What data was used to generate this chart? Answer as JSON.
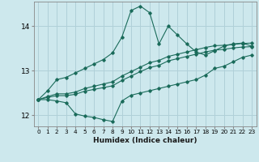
{
  "xlabel": "Humidex (Indice chaleur)",
  "ylabel": "",
  "bg_color": "#cde8ed",
  "grid_color": "#b0d0d8",
  "line_color": "#1a6b5a",
  "xlim": [
    -0.5,
    23.5
  ],
  "ylim": [
    11.75,
    14.55
  ],
  "xticks": [
    0,
    1,
    2,
    3,
    4,
    5,
    6,
    7,
    8,
    9,
    10,
    11,
    12,
    13,
    14,
    15,
    16,
    17,
    18,
    19,
    20,
    21,
    22,
    23
  ],
  "yticks": [
    12,
    13,
    14
  ],
  "series": {
    "upper": [
      [
        0,
        12.35
      ],
      [
        1,
        12.55
      ],
      [
        2,
        12.8
      ],
      [
        3,
        12.85
      ],
      [
        4,
        12.95
      ],
      [
        5,
        13.05
      ],
      [
        6,
        13.15
      ],
      [
        7,
        13.25
      ],
      [
        8,
        13.4
      ],
      [
        9,
        13.75
      ],
      [
        10,
        14.35
      ],
      [
        11,
        14.45
      ],
      [
        12,
        14.3
      ],
      [
        13,
        13.6
      ],
      [
        14,
        14.0
      ],
      [
        15,
        13.8
      ],
      [
        16,
        13.6
      ],
      [
        17,
        13.42
      ],
      [
        18,
        13.35
      ],
      [
        19,
        13.45
      ],
      [
        20,
        13.55
      ],
      [
        21,
        13.6
      ],
      [
        22,
        13.62
      ],
      [
        23,
        13.55
      ]
    ],
    "mean1": [
      [
        0,
        12.35
      ],
      [
        1,
        12.42
      ],
      [
        2,
        12.48
      ],
      [
        3,
        12.48
      ],
      [
        4,
        12.52
      ],
      [
        5,
        12.6
      ],
      [
        6,
        12.65
      ],
      [
        7,
        12.7
      ],
      [
        8,
        12.75
      ],
      [
        9,
        12.88
      ],
      [
        10,
        12.98
      ],
      [
        11,
        13.08
      ],
      [
        12,
        13.18
      ],
      [
        13,
        13.23
      ],
      [
        14,
        13.32
      ],
      [
        15,
        13.37
      ],
      [
        16,
        13.42
      ],
      [
        17,
        13.47
      ],
      [
        18,
        13.52
      ],
      [
        19,
        13.56
      ],
      [
        20,
        13.57
      ],
      [
        21,
        13.59
      ],
      [
        22,
        13.61
      ],
      [
        23,
        13.62
      ]
    ],
    "mean2": [
      [
        0,
        12.35
      ],
      [
        1,
        12.4
      ],
      [
        2,
        12.44
      ],
      [
        3,
        12.44
      ],
      [
        4,
        12.47
      ],
      [
        5,
        12.54
      ],
      [
        6,
        12.58
      ],
      [
        7,
        12.62
      ],
      [
        8,
        12.66
      ],
      [
        9,
        12.78
      ],
      [
        10,
        12.88
      ],
      [
        11,
        12.98
      ],
      [
        12,
        13.07
      ],
      [
        13,
        13.12
      ],
      [
        14,
        13.22
      ],
      [
        15,
        13.27
      ],
      [
        16,
        13.32
      ],
      [
        17,
        13.37
      ],
      [
        18,
        13.42
      ],
      [
        19,
        13.46
      ],
      [
        20,
        13.48
      ],
      [
        21,
        13.51
      ],
      [
        22,
        13.53
      ],
      [
        23,
        13.54
      ]
    ],
    "lower": [
      [
        0,
        12.35
      ],
      [
        1,
        12.35
      ],
      [
        2,
        12.32
      ],
      [
        3,
        12.28
      ],
      [
        4,
        12.03
      ],
      [
        5,
        11.98
      ],
      [
        6,
        11.95
      ],
      [
        7,
        11.9
      ],
      [
        8,
        11.86
      ],
      [
        9,
        12.32
      ],
      [
        10,
        12.45
      ],
      [
        11,
        12.5
      ],
      [
        12,
        12.55
      ],
      [
        13,
        12.6
      ],
      [
        14,
        12.65
      ],
      [
        15,
        12.7
      ],
      [
        16,
        12.75
      ],
      [
        17,
        12.8
      ],
      [
        18,
        12.9
      ],
      [
        19,
        13.05
      ],
      [
        20,
        13.1
      ],
      [
        21,
        13.2
      ],
      [
        22,
        13.3
      ],
      [
        23,
        13.35
      ]
    ]
  }
}
